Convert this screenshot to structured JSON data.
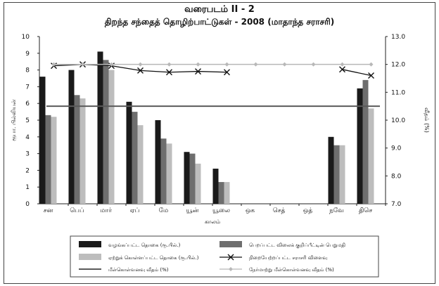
{
  "chart_data": {
    "type": "bar",
    "title": "வரைபடம் II - 2",
    "subtitle": "திறந்த சந்தைத் தொழிற்பாட்டுகள் - 2008 (மாதாந்த சராசரி)",
    "xlabel": "காலம்",
    "ylabel": "ரூபா. பில்லியன்",
    "y2label": "வீதம் (%)",
    "ylim": [
      0,
      10
    ],
    "y2lim": [
      7.0,
      13.0
    ],
    "yticks": [
      "0",
      "1",
      "2",
      "3",
      "4",
      "5",
      "6",
      "7",
      "8",
      "9",
      "10"
    ],
    "y2ticks": [
      "7.0",
      "8.0",
      "9.0",
      "10.0",
      "11.0",
      "12.0",
      "13.0"
    ],
    "categories": [
      "சன",
      "பெப்",
      "மார்",
      "ஏப்",
      "மே",
      "யூன்",
      "யூலை",
      "ஒக",
      "செத்",
      "ஒத்",
      "நவே",
      "திசெ"
    ],
    "series": [
      {
        "name": "வழங்கப்பட்ட தொகை (ரூ.பில்.)",
        "axis": "left",
        "kind": "bar",
        "color": "#1a1a1a",
        "values": [
          7.6,
          8.0,
          9.1,
          6.1,
          5.0,
          3.1,
          2.1,
          null,
          null,
          null,
          4.0,
          6.9
        ]
      },
      {
        "name": "பெறப்பட்ட விலைக் குறிப்பீட்டின் பெறுமதி",
        "axis": "left",
        "kind": "bar",
        "color": "#6e6e6e",
        "values": [
          5.3,
          6.5,
          8.6,
          5.5,
          3.9,
          3.0,
          1.3,
          null,
          null,
          null,
          3.5,
          7.4
        ]
      },
      {
        "name": "ஏற்றுக் கொள்ளப்பட்ட தொகை (ரூ.பில்.)",
        "axis": "left",
        "kind": "bar",
        "color": "#bdbdbd",
        "values": [
          5.2,
          6.3,
          8.0,
          4.7,
          3.6,
          2.4,
          1.3,
          null,
          null,
          null,
          3.5,
          5.7
        ]
      },
      {
        "name": "நிறையேற்றப்பட்ட சராசரி விளைவு",
        "axis": "right",
        "kind": "line-x",
        "color": "#111111",
        "values": [
          11.95,
          12.0,
          11.95,
          11.78,
          11.72,
          11.75,
          11.72,
          null,
          null,
          null,
          11.82,
          11.6
        ]
      },
      {
        "name": "மீள்கொள்வனவு வீதம் (%)",
        "axis": "right",
        "kind": "line",
        "color": "#5a5a5a",
        "values": [
          10.5,
          10.5,
          10.5,
          10.5,
          10.5,
          10.5,
          10.5,
          10.5,
          10.5,
          10.5,
          10.5,
          10.5
        ]
      },
      {
        "name": "நேர்மாற்று மீள்கொள்வனவு வீதம் (%)",
        "axis": "right",
        "kind": "line-diamond",
        "color": "#b8b8b8",
        "values": [
          12.0,
          12.0,
          12.0,
          12.0,
          12.0,
          12.0,
          12.0,
          12.0,
          12.0,
          12.0,
          12.0,
          12.0
        ]
      }
    ],
    "legend_position": "bottom"
  }
}
